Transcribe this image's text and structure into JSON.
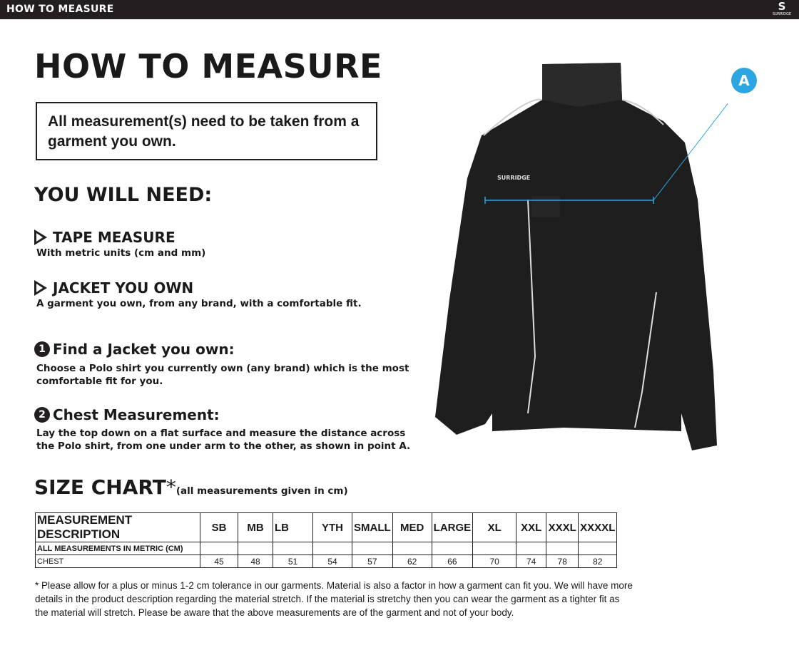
{
  "header": {
    "title": "HOW TO MEASURE",
    "logo_text": "SURRIDGE"
  },
  "page_title": "HOW TO MEASURE",
  "notice": "All measurement(s) need to be taken from a garment you own.",
  "you_will_need": {
    "heading": "YOU WILL NEED:",
    "items": [
      {
        "title": "TAPE MEASURE",
        "desc": "With metric units (cm and mm)"
      },
      {
        "title": "JACKET YOU OWN",
        "desc": "A garment you own, from any brand, with a comfortable fit."
      }
    ]
  },
  "steps": [
    {
      "num": "1",
      "title": "Find a Jacket you own:",
      "desc": "Choose a Polo shirt you currently own (any brand) which is the most comfortable fit for you."
    },
    {
      "num": "2",
      "title": "Chest Measurement:",
      "desc": "Lay the top down on a flat surface and measure the distance across the Polo shirt, from one under arm to the other, as shown in point A."
    }
  ],
  "size_chart": {
    "heading": "SIZE CHART",
    "asterisk": "*",
    "note": "(all measurements given in cm)",
    "header": [
      "MEASUREMENT DESCRIPTION",
      "SB",
      "MB",
      "LB",
      "YTH",
      "SMALL",
      "MED",
      "LARGE",
      "XL",
      "XXL",
      "XXXL",
      "XXXXL"
    ],
    "metric_row": "ALL MEASUREMENTS IN METRIC (CM)",
    "rows": [
      {
        "label": "CHEST",
        "values": [
          "45",
          "48",
          "51",
          "54",
          "57",
          "62",
          "66",
          "70",
          "74",
          "78",
          "82"
        ]
      }
    ]
  },
  "footnote": "* Please allow for a plus or minus 1-2 cm tolerance in our garments. Material is also a factor in how a garment can fit you. We will have more details in the product description regarding the material stretch.  If the material is stretchy then you can wear the garment as a tighter fit as the material will stretch.  Please be aware that the above measurements are of the garment and not of your body.",
  "diagram": {
    "point_label": "A",
    "jacket_logo": "SURRIDGE",
    "accent": "#2ba6e0"
  }
}
